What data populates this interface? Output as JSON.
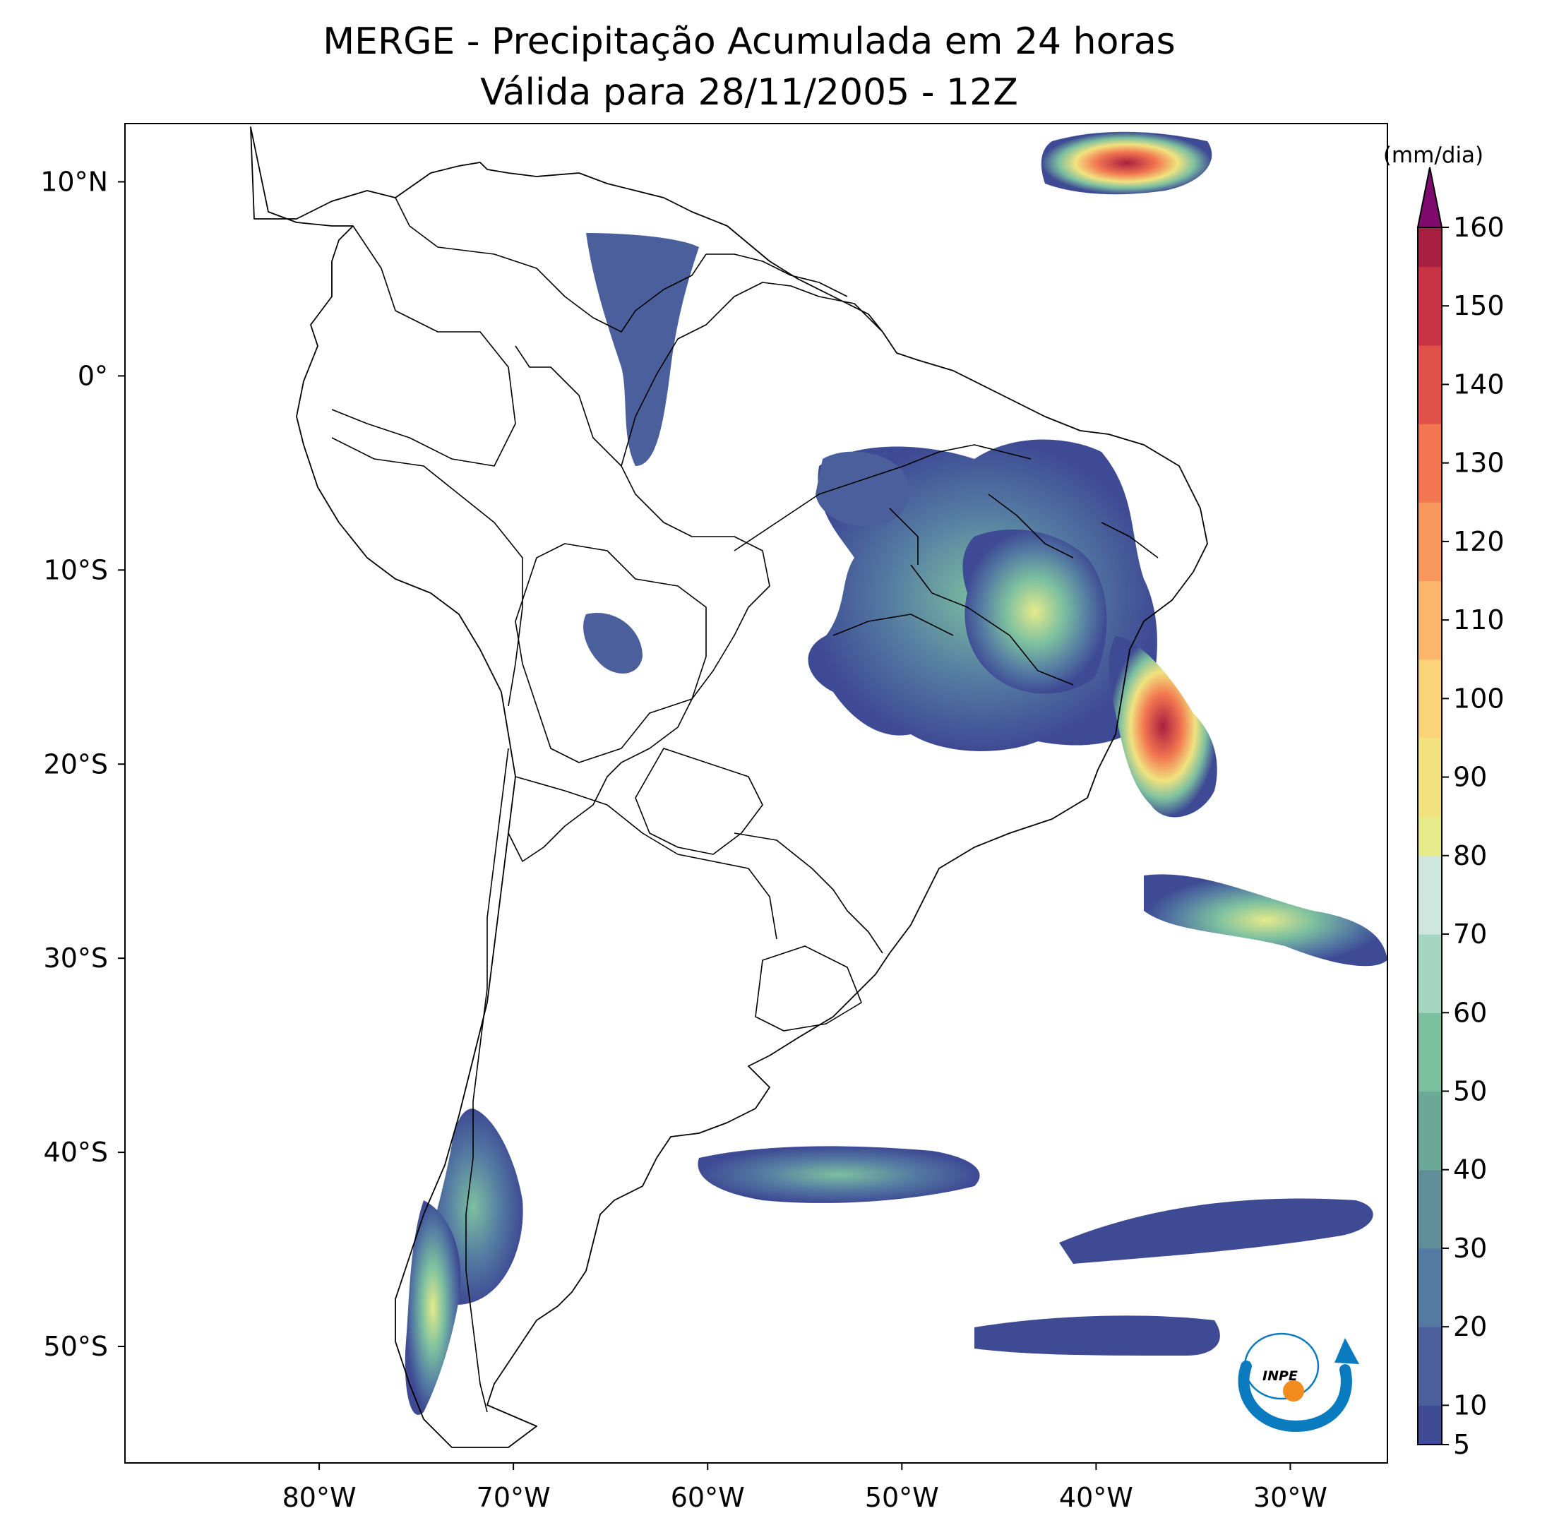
{
  "title": {
    "line1": "MERGE - Precipitação Acumulada em 24 horas",
    "line2": "Válida para 28/11/2005 - 12Z"
  },
  "map": {
    "lon_range": [
      -90,
      -25
    ],
    "lat_range": [
      -56,
      13
    ],
    "lon_ticks": [
      "80°W",
      "70°W",
      "60°W",
      "50°W",
      "40°W",
      "30°W"
    ],
    "lat_ticks": [
      "10°N",
      "0°",
      "10°S",
      "20°S",
      "30°S",
      "40°S",
      "50°S"
    ]
  },
  "colorbar": {
    "unit": "(mm/dia)",
    "tick_labels": [
      "5",
      "10",
      "20",
      "30",
      "40",
      "50",
      "60",
      "70",
      "80",
      "90",
      "100",
      "110",
      "120",
      "130",
      "140",
      "150",
      "160"
    ],
    "levels": [
      5,
      10,
      20,
      30,
      40,
      50,
      60,
      70,
      80,
      90,
      100,
      110,
      120,
      130,
      140,
      150,
      160
    ],
    "extend": "max",
    "colors": [
      "#3e4a94",
      "#4a5f9c",
      "#547aa2",
      "#5f8e98",
      "#6ba896",
      "#7cc0a0",
      "#a4d6c2",
      "#cde7df",
      "#e6ea8a",
      "#f1e27f",
      "#fbd47a",
      "#fbb56c",
      "#f7975e",
      "#f27650",
      "#e05249",
      "#c83446",
      "#a82041",
      "#7f0b6f"
    ]
  },
  "logo": {
    "name": "inpe-logo",
    "text": "INPE"
  }
}
